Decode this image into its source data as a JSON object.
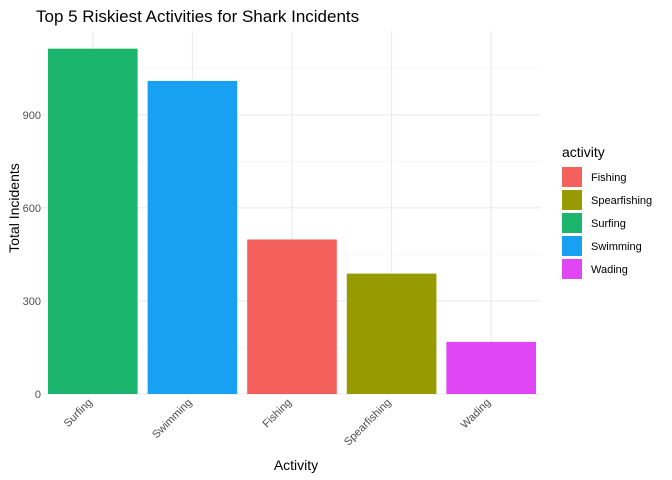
{
  "chart_data": {
    "type": "bar",
    "title": "Top 5 Riskiest Activities for Shark Incidents",
    "xlabel": "Activity",
    "ylabel": "Total Incidents",
    "categories": [
      "Surfing",
      "Swimming",
      "Fishing",
      "Spearfishing",
      "Wading"
    ],
    "values": [
      1113,
      1009,
      498,
      388,
      168
    ],
    "colors": [
      "#1bb56e",
      "#18a1f2",
      "#f4615d",
      "#979a00",
      "#e046f3"
    ],
    "ylim": [
      0,
      1170
    ],
    "yticks": [
      0,
      300,
      600,
      900
    ],
    "yticks_minor": [
      150,
      450,
      750,
      1050
    ],
    "grid": true,
    "legend": {
      "title": "activity",
      "position": "right",
      "entries": [
        {
          "label": "Fishing",
          "color": "#f4615d"
        },
        {
          "label": "Spearfishing",
          "color": "#979a00"
        },
        {
          "label": "Surfing",
          "color": "#1bb56e"
        },
        {
          "label": "Swimming",
          "color": "#18a1f2"
        },
        {
          "label": "Wading",
          "color": "#e046f3"
        }
      ]
    }
  }
}
